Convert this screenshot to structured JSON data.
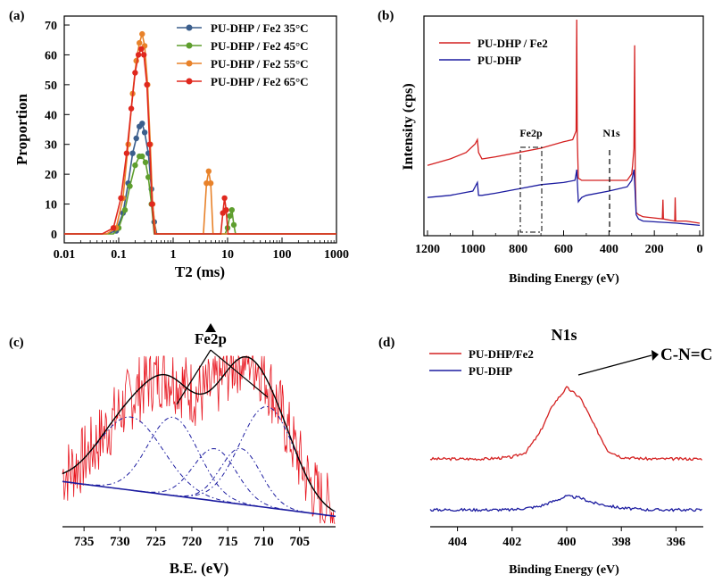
{
  "panels": {
    "a": {
      "label": "(a)",
      "chart_data": {
        "type": "line",
        "title": "",
        "xlabel": "T2 (ms)",
        "ylabel": "Proportion",
        "xscale": "log",
        "xlim": [
          0.01,
          1000
        ],
        "ylim": [
          -3,
          73
        ],
        "xticks": [
          0.01,
          0.1,
          1,
          10,
          100,
          1000
        ],
        "xtick_labels": [
          "0.01",
          "0.1",
          "1",
          "10",
          "100",
          "1000"
        ],
        "yticks": [
          0,
          10,
          20,
          30,
          40,
          50,
          60,
          70
        ],
        "ytick_labels": [
          "0",
          "10",
          "20",
          "30",
          "40",
          "50",
          "60",
          "70"
        ],
        "legend_position": "top-right",
        "series": [
          {
            "name": "PU-DHP / Fe2 35°C",
            "color": "#3b5e8c",
            "x": [
              0.01,
              0.06,
              0.09,
              0.12,
              0.15,
              0.18,
              0.21,
              0.24,
              0.27,
              0.3,
              0.35,
              0.4,
              0.45,
              0.5,
              1000
            ],
            "y": [
              0,
              0,
              1,
              7,
              17,
              27,
              32,
              36,
              37,
              34,
              27,
              15,
              4,
              0,
              0
            ]
          },
          {
            "name": "PU-DHP / Fe2 45°C",
            "color": "#5e9e2e",
            "x": [
              0.01,
              0.08,
              0.1,
              0.13,
              0.16,
              0.2,
              0.24,
              0.27,
              0.31,
              0.35,
              0.4,
              0.45,
              9,
              10,
              11,
              12,
              13,
              14,
              1000
            ],
            "y": [
              0,
              0,
              2,
              8,
              16,
              23,
              26,
              26,
              24,
              19,
              10,
              0,
              0,
              2,
              6,
              8,
              3,
              0,
              0
            ]
          },
          {
            "name": "PU-DHP / Fe2 55°C",
            "color": "#e8822a",
            "x": [
              0.01,
              0.06,
              0.09,
              0.12,
              0.15,
              0.18,
              0.21,
              0.24,
              0.27,
              0.3,
              0.34,
              0.38,
              0.42,
              0.48,
              3.6,
              4.1,
              4.5,
              4.9,
              5.4,
              1000
            ],
            "y": [
              0,
              0,
              2,
              12,
              30,
              47,
              58,
              64,
              67,
              63,
              50,
              30,
              10,
              0,
              0,
              17,
              21,
              17,
              0,
              0
            ]
          },
          {
            "name": "PU-DHP / Fe2 65°C",
            "color": "#e0281e",
            "x": [
              0.01,
              0.05,
              0.08,
              0.11,
              0.14,
              0.17,
              0.2,
              0.23,
              0.26,
              0.29,
              0.33,
              0.37,
              0.41,
              0.46,
              7.5,
              8.2,
              8.8,
              9.4,
              10.2,
              1000
            ],
            "y": [
              0,
              0,
              2,
              12,
              27,
              42,
              54,
              60,
              62,
              60,
              50,
              30,
              10,
              0,
              0,
              7,
              12,
              8,
              0,
              0
            ]
          }
        ]
      }
    },
    "b": {
      "label": "(b)",
      "chart_data": {
        "type": "line",
        "title": "",
        "xlabel": "Binding Energy (eV)",
        "ylabel": "Intensity (cps)",
        "xlim": [
          1200,
          0
        ],
        "ylim": [
          0,
          100
        ],
        "xticks": [
          1200,
          1000,
          800,
          600,
          400,
          200,
          0
        ],
        "xtick_labels": [
          "1200",
          "1000",
          "800",
          "600",
          "400",
          "200",
          "0"
        ],
        "legend_position": "top-left",
        "annotations": [
          "Fe2p",
          "N1s"
        ],
        "series": [
          {
            "name": "PU-DHP / Fe2",
            "color": "#d42020",
            "x": [
              1200,
              1100,
              1030,
              990,
              980,
              975,
              960,
              900,
              800,
              700,
              600,
              560,
              545,
              542,
              540,
              535,
              520,
              500,
              400,
              320,
              300,
              296,
              290,
              287,
              284,
              280,
              270,
              250,
              165,
              162,
              160,
              110,
              108,
              106,
              60,
              0
            ],
            "y": [
              32,
              35,
              38,
              42,
              44,
              38,
              35,
              36,
              38,
              40,
              43,
              44,
              48,
              100,
              45,
              26,
              25,
              25,
              25,
              25,
              28,
              32,
              40,
              88,
              25,
              10,
              9,
              8,
              7,
              16,
              7,
              6,
              17,
              6,
              6,
              5
            ]
          },
          {
            "name": "PU-DHP",
            "color": "#1c1ca0",
            "x": [
              1200,
              1100,
              1000,
              980,
              975,
              960,
              900,
              800,
              700,
              600,
              550,
              545,
              542,
              540,
              535,
              520,
              500,
              400,
              320,
              300,
              290,
              285,
              280,
              270,
              250,
              100,
              0
            ],
            "y": [
              17,
              18,
              20,
              24,
              18,
              18,
              19,
              21,
              23,
              24,
              25,
              28,
              30,
              25,
              15,
              17,
              18,
              20,
              22,
              25,
              30,
              20,
              9,
              7,
              6,
              5,
              4
            ]
          }
        ]
      }
    },
    "c": {
      "label": "(c)",
      "chart_data": {
        "type": "line",
        "title": "",
        "xlabel": "B.E. (eV)",
        "ylabel": "",
        "xlim": [
          738,
          700
        ],
        "ylim": [
          0,
          100
        ],
        "xticks": [
          735,
          730,
          725,
          720,
          715,
          710,
          705
        ],
        "xtick_labels": [
          "735",
          "730",
          "725",
          "720",
          "715",
          "710",
          "705"
        ],
        "annotations": [
          "Fe2p"
        ],
        "fit_peaks": [
          {
            "center": 728.5,
            "height": 62,
            "width": 4.5
          },
          {
            "center": 722.6,
            "height": 65,
            "width": 3.5
          },
          {
            "center": 716.8,
            "height": 50,
            "width": 3.0
          },
          {
            "center": 713.2,
            "height": 52,
            "width": 2.8
          },
          {
            "center": 709.5,
            "height": 78,
            "width": 3.8
          }
        ],
        "baseline": {
          "start": 26,
          "end": 6
        },
        "series": [
          {
            "name": "raw",
            "color": "#e8141e"
          },
          {
            "name": "envelope",
            "color": "#000000"
          },
          {
            "name": "background",
            "color": "#1c1ca0"
          },
          {
            "name": "components",
            "color": "#1c1ca0"
          }
        ]
      }
    },
    "d": {
      "label": "(d)",
      "chart_data": {
        "type": "line",
        "title": "N1s",
        "xlabel": "Binding Energy (eV)",
        "ylabel": "",
        "xlim": [
          405,
          395
        ],
        "ylim": [
          0,
          100
        ],
        "xticks": [
          404,
          402,
          400,
          398,
          396
        ],
        "xtick_labels": [
          "404",
          "402",
          "400",
          "398",
          "396"
        ],
        "legend_position": "top-left",
        "annotations": [
          "C-N=C"
        ],
        "series": [
          {
            "name": "PU-DHP/Fe2",
            "color": "#d42020",
            "x": [
              405,
              404,
              403,
              402,
              401.5,
              401,
              400.5,
              400,
              399.5,
              399,
              398.5,
              398,
              397,
              396,
              395
            ],
            "y": [
              40,
              40,
              40,
              41,
              44,
              55,
              72,
              82,
              76,
              60,
              45,
              41,
              40,
              40,
              40
            ]
          },
          {
            "name": "PU-DHP",
            "color": "#1c1ca0",
            "x": [
              405,
              403,
              402,
              401,
              400.5,
              400,
              399.5,
              399,
              398,
              397,
              395
            ],
            "y": [
              10,
              10,
              10,
              12,
              15,
              18,
              17,
              14,
              11,
              10,
              10
            ]
          }
        ]
      }
    }
  }
}
